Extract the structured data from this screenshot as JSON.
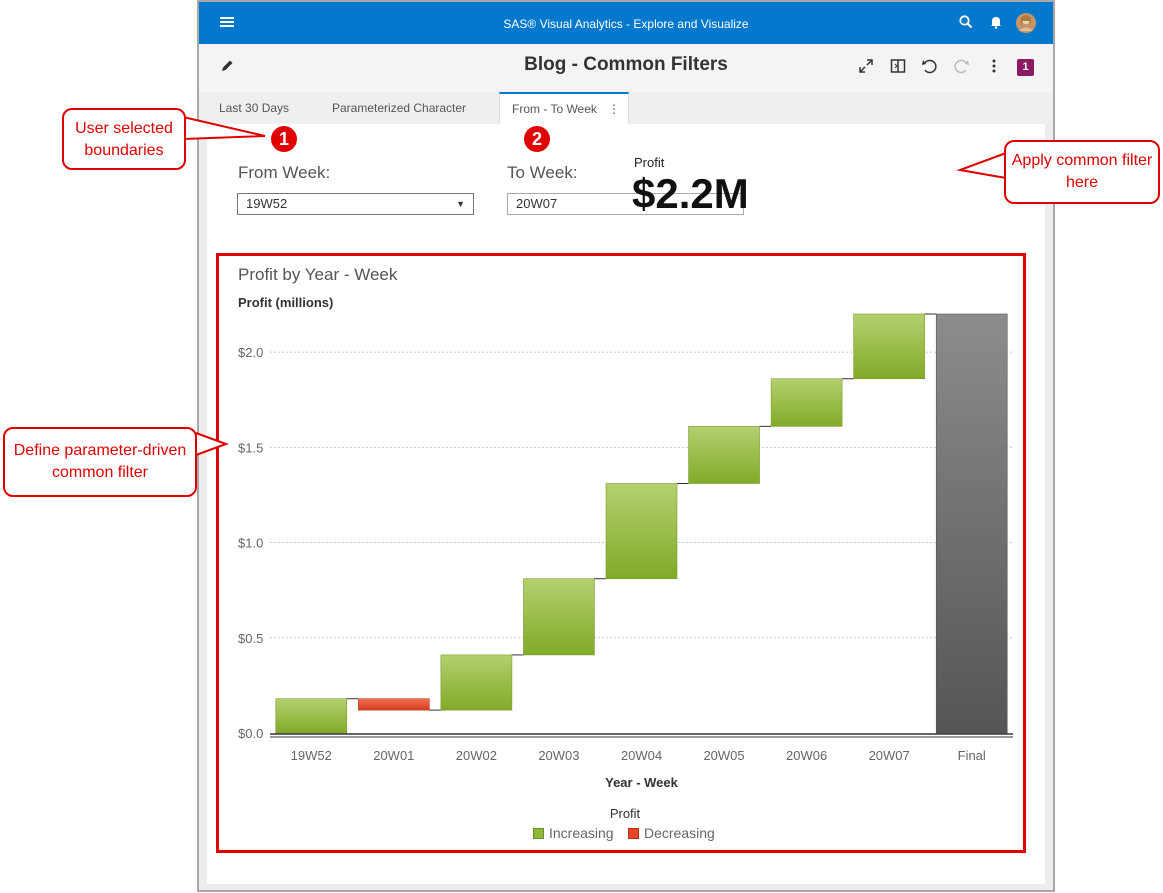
{
  "app": {
    "title": "SAS® Visual Analytics - Explore and Visualize"
  },
  "report": {
    "title": "Blog - Common Filters",
    "badge": "1"
  },
  "tabs": [
    {
      "label": "Last 30 Days"
    },
    {
      "label": "Parameterized Character"
    },
    {
      "label": "From - To Week"
    }
  ],
  "prompts": {
    "from_label": "From Week:",
    "from_value": "19W52",
    "to_label": "To Week:",
    "to_value": "20W07"
  },
  "kpi": {
    "label": "Profit",
    "value": "$2.2M"
  },
  "annotations": {
    "marker1": "1",
    "marker2": "2",
    "callout_user": "User selected boundaries",
    "callout_apply": "Apply common filter here",
    "callout_define": "Define parameter-driven common filter"
  },
  "icons": [
    "menu-icon",
    "search-icon",
    "bell-icon",
    "avatar",
    "edit-icon",
    "expand-icon",
    "panel-icon",
    "undo-icon",
    "redo-icon",
    "more-icon",
    "tab-menu-icon"
  ],
  "colors": {
    "increasing": "#8db83a",
    "decreasing": "#e8442a",
    "final": "#6f6f6f",
    "accent": "#0378cd",
    "annotation": "#e00000"
  },
  "chart_data": {
    "type": "waterfall",
    "title": "Profit by Year - Week",
    "ylabel": "Profit (millions)",
    "xlabel": "Year - Week",
    "y_tick_labels": [
      "$0.0",
      "$0.5",
      "$1.0",
      "$1.5",
      "$2.0"
    ],
    "y_ticks": [
      0,
      0.5,
      1.0,
      1.5,
      2.0
    ],
    "ylim": [
      0,
      2.2
    ],
    "categories": [
      "19W52",
      "20W01",
      "20W02",
      "20W03",
      "20W04",
      "20W05",
      "20W06",
      "20W07",
      "Final"
    ],
    "changes": [
      0.18,
      -0.06,
      0.29,
      0.4,
      0.5,
      0.3,
      0.25,
      0.34
    ],
    "final": 2.2,
    "legend_title": "Profit",
    "legend": [
      "Increasing",
      "Decreasing"
    ],
    "grid": true
  }
}
